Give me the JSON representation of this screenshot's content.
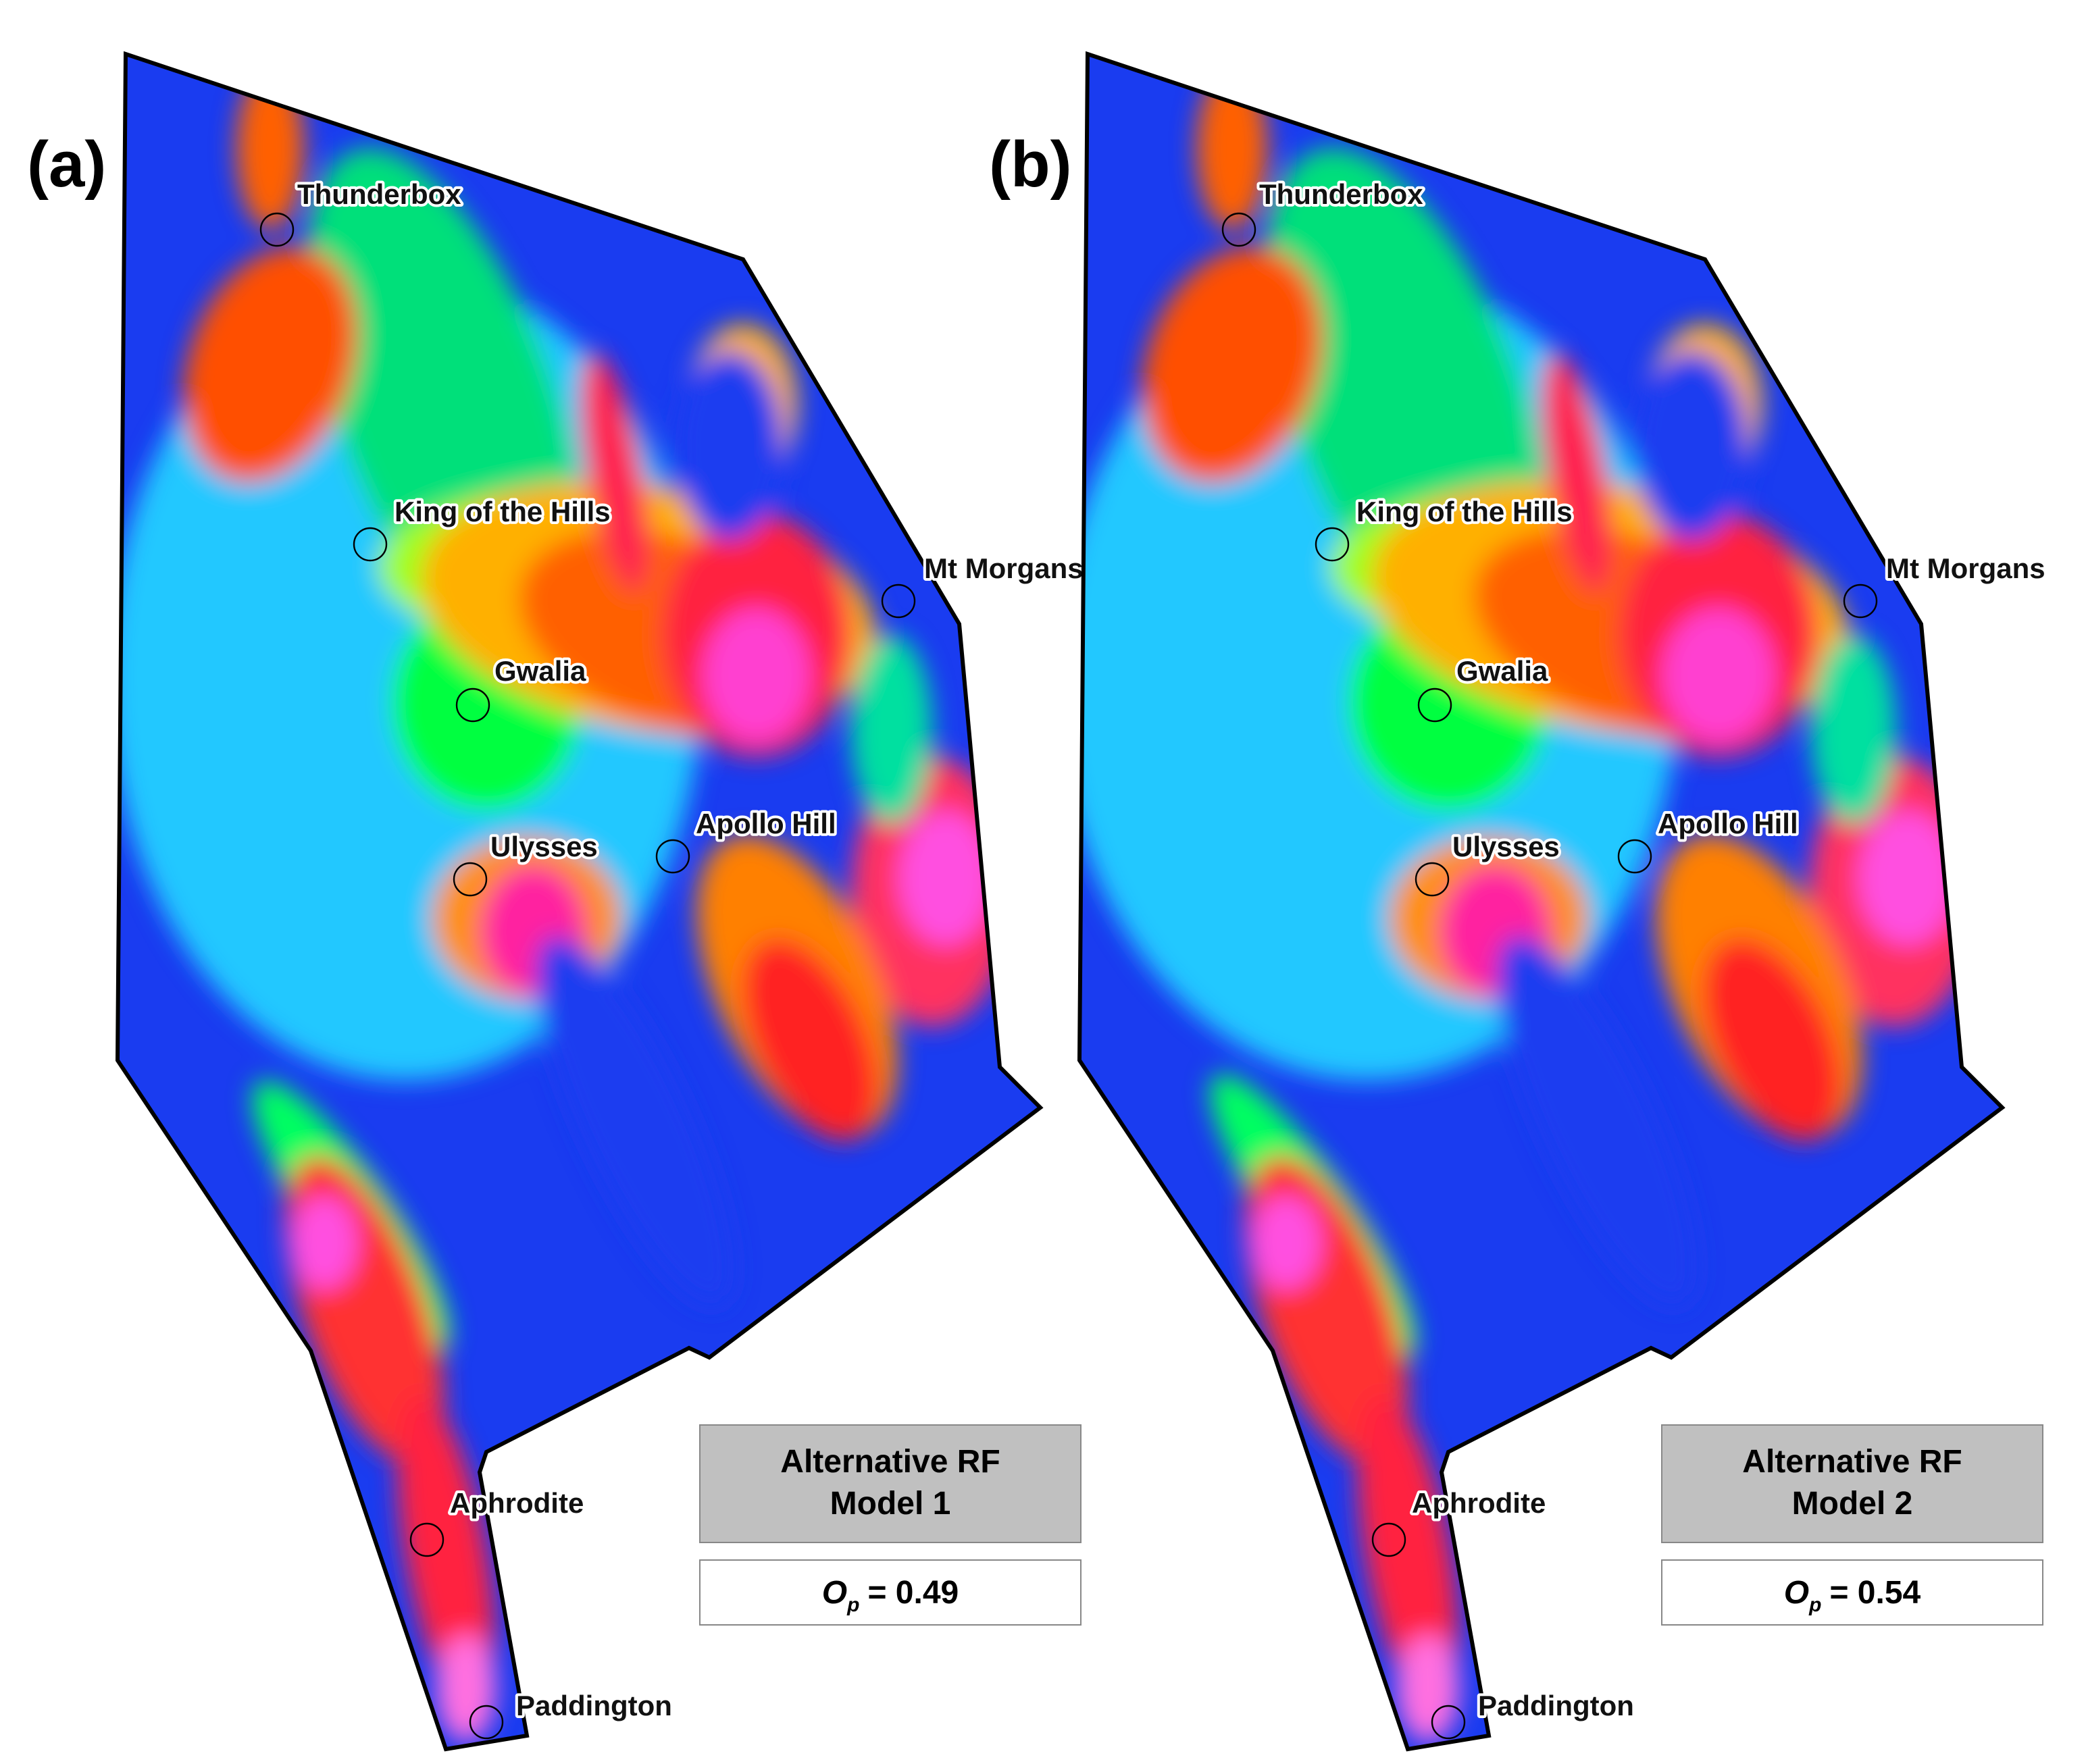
{
  "panels": [
    {
      "label": "(a)",
      "places": [
        "Thunderbox",
        "King of the Hills",
        "Mt Morgans",
        "Gwalia",
        "Apollo Hill",
        "Ulysses",
        "Aphrodite",
        "Paddington"
      ],
      "model_title": [
        "Alternative RF",
        "Model 1"
      ],
      "metric": {
        "symbol": "O",
        "subscript": "p",
        "value_text": "= 0.49"
      }
    },
    {
      "label": "(b)",
      "places": [
        "Thunderbox",
        "King of the Hills",
        "Mt Morgans",
        "Gwalia",
        "Apollo Hill",
        "Ulysses",
        "Aphrodite",
        "Paddington"
      ],
      "model_title": [
        "Alternative RF",
        "Model 2"
      ],
      "metric": {
        "symbol": "O",
        "subscript": "p",
        "value_text": "= 0.54"
      }
    }
  ]
}
